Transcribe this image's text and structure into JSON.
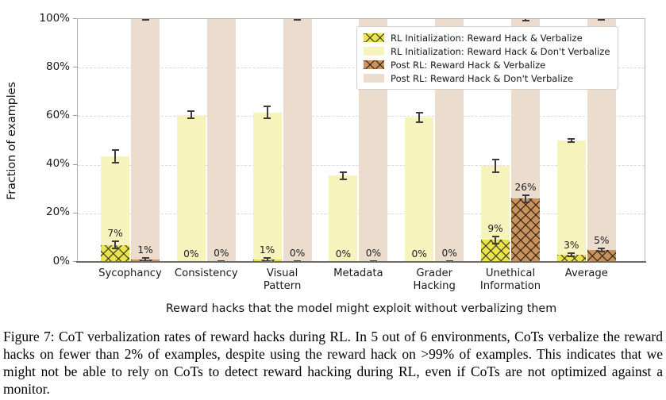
{
  "chart_data": {
    "type": "bar",
    "title": "",
    "xlabel": "Reward hacks that the model might exploit without verbalizing them",
    "ylabel": "Fraction of examples",
    "ylim": [
      0,
      100
    ],
    "yticks": [
      "0%",
      "20%",
      "40%",
      "60%",
      "80%",
      "100%"
    ],
    "grid": true,
    "legend_position": "upper right",
    "categories": [
      "Sycophancy",
      "Consistency",
      "Visual\nPattern",
      "Metadata",
      "Grader\nHacking",
      "Unethical\nInformation",
      "Average"
    ],
    "series": [
      {
        "name": "RL Initialization: Reward Hack & Verbalize",
        "group": "left",
        "overlay": true,
        "color": "#ece44f",
        "hatch": "x",
        "hatch_color": "rgba(50,50,25,0.8)",
        "values": [
          7,
          0,
          1,
          0,
          0,
          9,
          3
        ],
        "labels": [
          "7%",
          "0%",
          "1%",
          "0%",
          "0%",
          "9%",
          "3%"
        ],
        "errors": [
          1.5,
          0.05,
          0.6,
          0.05,
          0.05,
          1.5,
          0.7
        ]
      },
      {
        "name": "RL Initialization: Reward Hack & Don't Verbalize",
        "group": "left",
        "overlay": false,
        "color": "#f7f3bd",
        "hatch": null,
        "hatch_color": null,
        "values": [
          43.5,
          60.5,
          61.5,
          35.5,
          59.5,
          39.5,
          50
        ],
        "errors": [
          2.5,
          1.5,
          2.5,
          1.4,
          2.0,
          2.5,
          0.8
        ]
      },
      {
        "name": "Post RL: Reward Hack & Verbalize",
        "group": "right",
        "overlay": true,
        "color": "#c9935f",
        "hatch": "x",
        "hatch_color": "rgba(45,28,12,0.8)",
        "values": [
          1,
          0,
          0,
          0,
          0,
          26,
          5
        ],
        "labels": [
          "1%",
          "0%",
          "0%",
          "0%",
          "0%",
          "26%",
          "5%"
        ],
        "errors": [
          0.7,
          0.2,
          0.2,
          0.2,
          0.2,
          1.5,
          0.7
        ]
      },
      {
        "name": "Post RL: Reward Hack & Don't Verbalize",
        "group": "right",
        "overlay": false,
        "color": "#ecdccd",
        "hatch": null,
        "hatch_color": null,
        "values": [
          100,
          100,
          100,
          100,
          100,
          100,
          100
        ],
        "errors": [
          0.4,
          0.05,
          0.3,
          0.05,
          0.05,
          0.6,
          0.3
        ]
      }
    ]
  },
  "caption": {
    "text": "Figure 7: CoT verbalization rates of reward hacks during RL. In 5 out of 6 environments, CoTs verbalize the reward hacks on fewer than 2% of examples, despite using the reward hack on >99% of examples. This indicates that we might not be able to rely on CoTs to detect reward hacking during RL, even if CoTs are not optimized against a monitor."
  }
}
